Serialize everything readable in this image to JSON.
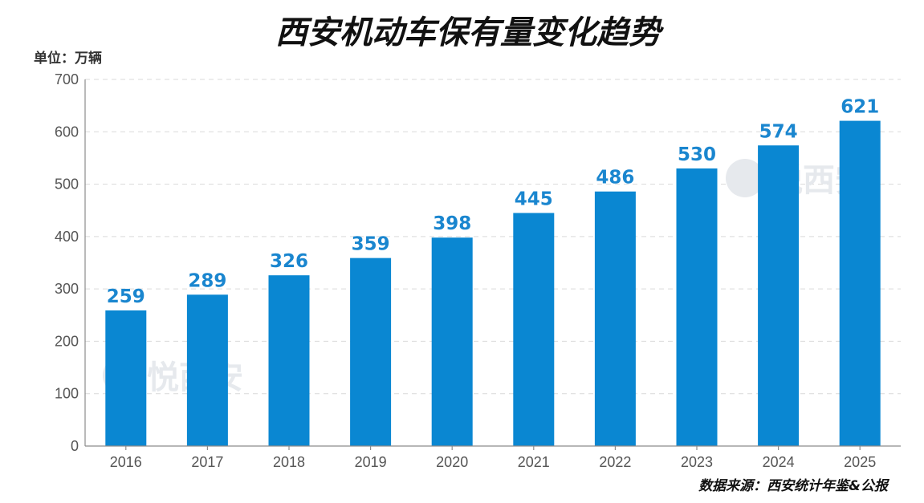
{
  "chart_data": {
    "type": "bar",
    "title": "西安机动车保有量变化趋势",
    "unit_label": "单位：万辆",
    "categories": [
      "2016",
      "2017",
      "2018",
      "2019",
      "2020",
      "2021",
      "2022",
      "2023",
      "2024",
      "2025"
    ],
    "values": [
      259,
      289,
      326,
      359,
      398,
      445,
      486,
      530,
      574,
      621
    ],
    "ylim": [
      0,
      700
    ],
    "yticks": [
      0,
      100,
      200,
      300,
      400,
      500,
      600,
      700
    ],
    "grid": true,
    "bar_color": "#0a87d2",
    "label_color": "#1a86cf",
    "source": "数据来源：西安统计年鉴&公报"
  },
  "watermark": {
    "text": "悦西安",
    "icon": "brand-logo-icon"
  }
}
